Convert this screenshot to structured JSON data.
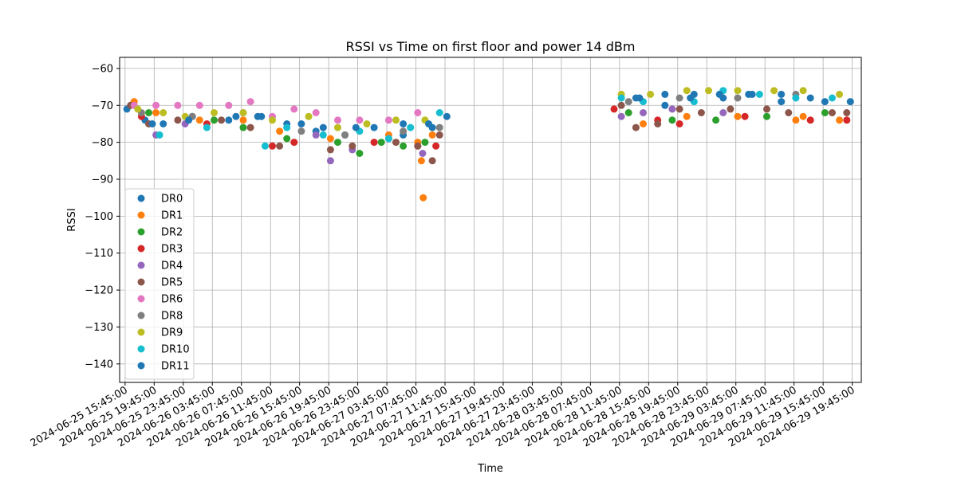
{
  "chart_data": {
    "type": "scatter",
    "title": "RSSI vs Time on first floor and power 14 dBm",
    "xlabel": "Time",
    "ylabel": "RSSI",
    "ylim": [
      -145,
      -57
    ],
    "yticks": [
      -60,
      -70,
      -80,
      -90,
      -100,
      -110,
      -120,
      -130,
      -140
    ],
    "xlim": [
      "2024-06-25 15:00:00",
      "2024-06-29 21:00:00"
    ],
    "xticks": [
      "2024-06-25 15:45:00",
      "2024-06-25 19:45:00",
      "2024-06-25 23:45:00",
      "2024-06-26 03:45:00",
      "2024-06-26 07:45:00",
      "2024-06-26 11:45:00",
      "2024-06-26 15:45:00",
      "2024-06-26 19:45:00",
      "2024-06-26 23:45:00",
      "2024-06-27 03:45:00",
      "2024-06-27 07:45:00",
      "2024-06-27 11:45:00",
      "2024-06-27 15:45:00",
      "2024-06-27 19:45:00",
      "2024-06-27 23:45:00",
      "2024-06-28 03:45:00",
      "2024-06-28 07:45:00",
      "2024-06-28 11:45:00",
      "2024-06-28 15:45:00",
      "2024-06-28 19:45:00",
      "2024-06-28 23:45:00",
      "2024-06-29 03:45:00",
      "2024-06-29 07:45:00",
      "2024-06-29 11:45:00",
      "2024-06-29 15:45:00",
      "2024-06-29 19:45:00"
    ],
    "grid": true,
    "legend_position": "center-left",
    "series": [
      {
        "name": "DR0",
        "color": "#1f77b4",
        "points": [
          [
            "2024-06-25 16:00",
            -71
          ],
          [
            "2024-06-25 18:30",
            -74
          ],
          [
            "2024-06-25 21:00",
            -75
          ],
          [
            "2024-06-26 01:00",
            -73
          ],
          [
            "2024-06-26 06:00",
            -74
          ],
          [
            "2024-06-26 10:00",
            -73
          ],
          [
            "2024-06-26 14:00",
            -75
          ],
          [
            "2024-06-26 18:00",
            -77
          ],
          [
            "2024-06-26 22:00",
            -78
          ],
          [
            "2024-06-27 02:00",
            -76
          ],
          [
            "2024-06-27 06:00",
            -78
          ],
          [
            "2024-06-27 10:00",
            -76
          ],
          [
            "2024-06-28 14:00",
            -68
          ],
          [
            "2024-06-28 18:00",
            -70
          ],
          [
            "2024-06-28 22:00",
            -67
          ],
          [
            "2024-06-29 02:00",
            -68
          ],
          [
            "2024-06-29 06:00",
            -67
          ],
          [
            "2024-06-29 10:00",
            -69
          ],
          [
            "2024-06-29 14:00",
            -68
          ]
        ]
      },
      {
        "name": "DR1",
        "color": "#ff7f0e",
        "points": [
          [
            "2024-06-25 17:00",
            -69
          ],
          [
            "2024-06-25 20:00",
            -72
          ],
          [
            "2024-06-26 02:00",
            -74
          ],
          [
            "2024-06-26 08:00",
            -74
          ],
          [
            "2024-06-26 13:00",
            -77
          ],
          [
            "2024-06-26 20:00",
            -79
          ],
          [
            "2024-06-27 04:00",
            -78
          ],
          [
            "2024-06-27 08:00",
            -80
          ],
          [
            "2024-06-27 08:30",
            -85
          ],
          [
            "2024-06-27 08:45",
            -95
          ],
          [
            "2024-06-27 10:00",
            -78
          ],
          [
            "2024-06-28 15:00",
            -75
          ],
          [
            "2024-06-28 21:00",
            -73
          ],
          [
            "2024-06-29 04:00",
            -73
          ],
          [
            "2024-06-29 12:00",
            -74
          ],
          [
            "2024-06-29 13:00",
            -73
          ],
          [
            "2024-06-29 18:00",
            -74
          ]
        ]
      },
      {
        "name": "DR2",
        "color": "#2ca02c",
        "points": [
          [
            "2024-06-25 19:00",
            -72
          ],
          [
            "2024-06-26 04:00",
            -74
          ],
          [
            "2024-06-26 08:00",
            -76
          ],
          [
            "2024-06-26 14:00",
            -79
          ],
          [
            "2024-06-26 21:00",
            -80
          ],
          [
            "2024-06-27 00:00",
            -83
          ],
          [
            "2024-06-27 03:00",
            -80
          ],
          [
            "2024-06-27 06:00",
            -81
          ],
          [
            "2024-06-27 09:00",
            -80
          ],
          [
            "2024-06-28 13:00",
            -72
          ],
          [
            "2024-06-28 19:00",
            -74
          ],
          [
            "2024-06-29 01:00",
            -74
          ],
          [
            "2024-06-29 08:00",
            -73
          ],
          [
            "2024-06-29 16:00",
            -72
          ]
        ]
      },
      {
        "name": "DR3",
        "color": "#d62728",
        "points": [
          [
            "2024-06-25 18:00",
            -73
          ],
          [
            "2024-06-26 03:00",
            -75
          ],
          [
            "2024-06-26 12:00",
            -81
          ],
          [
            "2024-06-26 15:00",
            -80
          ],
          [
            "2024-06-27 02:00",
            -80
          ],
          [
            "2024-06-27 08:00",
            -81
          ],
          [
            "2024-06-27 10:30",
            -81
          ],
          [
            "2024-06-28 11:00",
            -71
          ],
          [
            "2024-06-28 17:00",
            -74
          ],
          [
            "2024-06-28 20:00",
            -75
          ],
          [
            "2024-06-29 05:00",
            -73
          ],
          [
            "2024-06-29 14:00",
            -74
          ],
          [
            "2024-06-29 19:00",
            -74
          ]
        ]
      },
      {
        "name": "DR4",
        "color": "#9467bd",
        "points": [
          [
            "2024-06-25 20:00",
            -78
          ],
          [
            "2024-06-26 00:00",
            -75
          ],
          [
            "2024-06-26 18:00",
            -78
          ],
          [
            "2024-06-26 20:00",
            -85
          ],
          [
            "2024-06-26 23:00",
            -82
          ],
          [
            "2024-06-27 04:00",
            -79
          ],
          [
            "2024-06-27 08:40",
            -83
          ],
          [
            "2024-06-28 12:00",
            -73
          ],
          [
            "2024-06-28 15:00",
            -72
          ],
          [
            "2024-06-28 19:00",
            -71
          ],
          [
            "2024-06-29 02:00",
            -72
          ]
        ]
      },
      {
        "name": "DR5",
        "color": "#8c564b",
        "points": [
          [
            "2024-06-25 16:30",
            -70
          ],
          [
            "2024-06-25 19:00",
            -75
          ],
          [
            "2024-06-25 23:00",
            -74
          ],
          [
            "2024-06-26 05:00",
            -74
          ],
          [
            "2024-06-26 09:00",
            -76
          ],
          [
            "2024-06-26 13:00",
            -81
          ],
          [
            "2024-06-26 20:00",
            -82
          ],
          [
            "2024-06-26 23:00",
            -81
          ],
          [
            "2024-06-27 05:00",
            -80
          ],
          [
            "2024-06-27 08:00",
            -81
          ],
          [
            "2024-06-27 10:00",
            -85
          ],
          [
            "2024-06-27 11:00",
            -78
          ],
          [
            "2024-06-28 12:00",
            -70
          ],
          [
            "2024-06-28 14:00",
            -76
          ],
          [
            "2024-06-28 17:00",
            -75
          ],
          [
            "2024-06-28 20:00",
            -71
          ],
          [
            "2024-06-28 23:00",
            -72
          ],
          [
            "2024-06-29 03:00",
            -71
          ],
          [
            "2024-06-29 08:00",
            -71
          ],
          [
            "2024-06-29 11:00",
            -72
          ],
          [
            "2024-06-29 17:00",
            -72
          ],
          [
            "2024-06-29 19:00",
            -72
          ]
        ]
      },
      {
        "name": "DR6",
        "color": "#e377c2",
        "points": [
          [
            "2024-06-25 17:00",
            -70
          ],
          [
            "2024-06-25 20:00",
            -70
          ],
          [
            "2024-06-25 23:00",
            -70
          ],
          [
            "2024-06-26 02:00",
            -70
          ],
          [
            "2024-06-26 06:00",
            -70
          ],
          [
            "2024-06-26 09:00",
            -69
          ],
          [
            "2024-06-26 12:00",
            -73
          ],
          [
            "2024-06-26 15:00",
            -71
          ],
          [
            "2024-06-26 18:00",
            -72
          ],
          [
            "2024-06-26 21:00",
            -74
          ],
          [
            "2024-06-27 00:00",
            -74
          ],
          [
            "2024-06-27 04:00",
            -74
          ],
          [
            "2024-06-27 08:00",
            -72
          ]
        ]
      },
      {
        "name": "DR8",
        "color": "#7f7f7f",
        "points": [
          [
            "2024-06-25 18:00",
            -72
          ],
          [
            "2024-06-26 01:00",
            -73
          ],
          [
            "2024-06-26 08:00",
            -72
          ],
          [
            "2024-06-26 16:00",
            -77
          ],
          [
            "2024-06-26 22:00",
            -78
          ],
          [
            "2024-06-27 06:00",
            -77
          ],
          [
            "2024-06-27 11:00",
            -76
          ],
          [
            "2024-06-28 13:00",
            -69
          ],
          [
            "2024-06-28 20:00",
            -68
          ],
          [
            "2024-06-29 04:00",
            -68
          ],
          [
            "2024-06-29 12:00",
            -67
          ]
        ]
      },
      {
        "name": "DR9",
        "color": "#bcbd22",
        "points": [
          [
            "2024-06-25 17:30",
            -71
          ],
          [
            "2024-06-25 21:00",
            -72
          ],
          [
            "2024-06-26 00:00",
            -73
          ],
          [
            "2024-06-26 04:00",
            -72
          ],
          [
            "2024-06-26 08:00",
            -72
          ],
          [
            "2024-06-26 12:00",
            -74
          ],
          [
            "2024-06-26 17:00",
            -73
          ],
          [
            "2024-06-26 21:00",
            -76
          ],
          [
            "2024-06-27 01:00",
            -75
          ],
          [
            "2024-06-27 05:00",
            -74
          ],
          [
            "2024-06-27 09:00",
            -74
          ],
          [
            "2024-06-28 12:00",
            -67
          ],
          [
            "2024-06-28 16:00",
            -67
          ],
          [
            "2024-06-28 21:00",
            -66
          ],
          [
            "2024-06-29 00:00",
            -66
          ],
          [
            "2024-06-29 04:00",
            -66
          ],
          [
            "2024-06-29 09:00",
            -66
          ],
          [
            "2024-06-29 13:00",
            -66
          ],
          [
            "2024-06-29 18:00",
            -67
          ]
        ]
      },
      {
        "name": "DR10",
        "color": "#17becf",
        "points": [
          [
            "2024-06-25 20:30",
            -78
          ],
          [
            "2024-06-26 03:00",
            -76
          ],
          [
            "2024-06-26 11:00",
            -81
          ],
          [
            "2024-06-26 14:00",
            -76
          ],
          [
            "2024-06-26 19:00",
            -78
          ],
          [
            "2024-06-27 00:00",
            -77
          ],
          [
            "2024-06-27 04:00",
            -79
          ],
          [
            "2024-06-27 07:00",
            -76
          ],
          [
            "2024-06-27 11:00",
            -72
          ],
          [
            "2024-06-28 12:00",
            -68
          ],
          [
            "2024-06-28 15:00",
            -69
          ],
          [
            "2024-06-28 22:00",
            -69
          ],
          [
            "2024-06-29 02:00",
            -66
          ],
          [
            "2024-06-29 07:00",
            -67
          ],
          [
            "2024-06-29 12:00",
            -68
          ],
          [
            "2024-06-29 17:00",
            -68
          ]
        ]
      },
      {
        "name": "DR11",
        "color": "#1f77b4",
        "points": [
          [
            "2024-06-25 19:30",
            -75
          ],
          [
            "2024-06-26 00:30",
            -74
          ],
          [
            "2024-06-26 07:00",
            -73
          ],
          [
            "2024-06-26 10:30",
            -73
          ],
          [
            "2024-06-26 16:00",
            -75
          ],
          [
            "2024-06-26 19:00",
            -76
          ],
          [
            "2024-06-26 23:30",
            -76
          ],
          [
            "2024-06-27 06:00",
            -75
          ],
          [
            "2024-06-27 09:30",
            -75
          ],
          [
            "2024-06-27 12:00",
            -73
          ],
          [
            "2024-06-28 14:30",
            -68
          ],
          [
            "2024-06-28 18:00",
            -67
          ],
          [
            "2024-06-28 21:30",
            -68
          ],
          [
            "2024-06-29 01:30",
            -67
          ],
          [
            "2024-06-29 05:30",
            -67
          ],
          [
            "2024-06-29 10:00",
            -67
          ],
          [
            "2024-06-29 16:00",
            -69
          ],
          [
            "2024-06-29 19:30",
            -69
          ]
        ]
      }
    ]
  }
}
